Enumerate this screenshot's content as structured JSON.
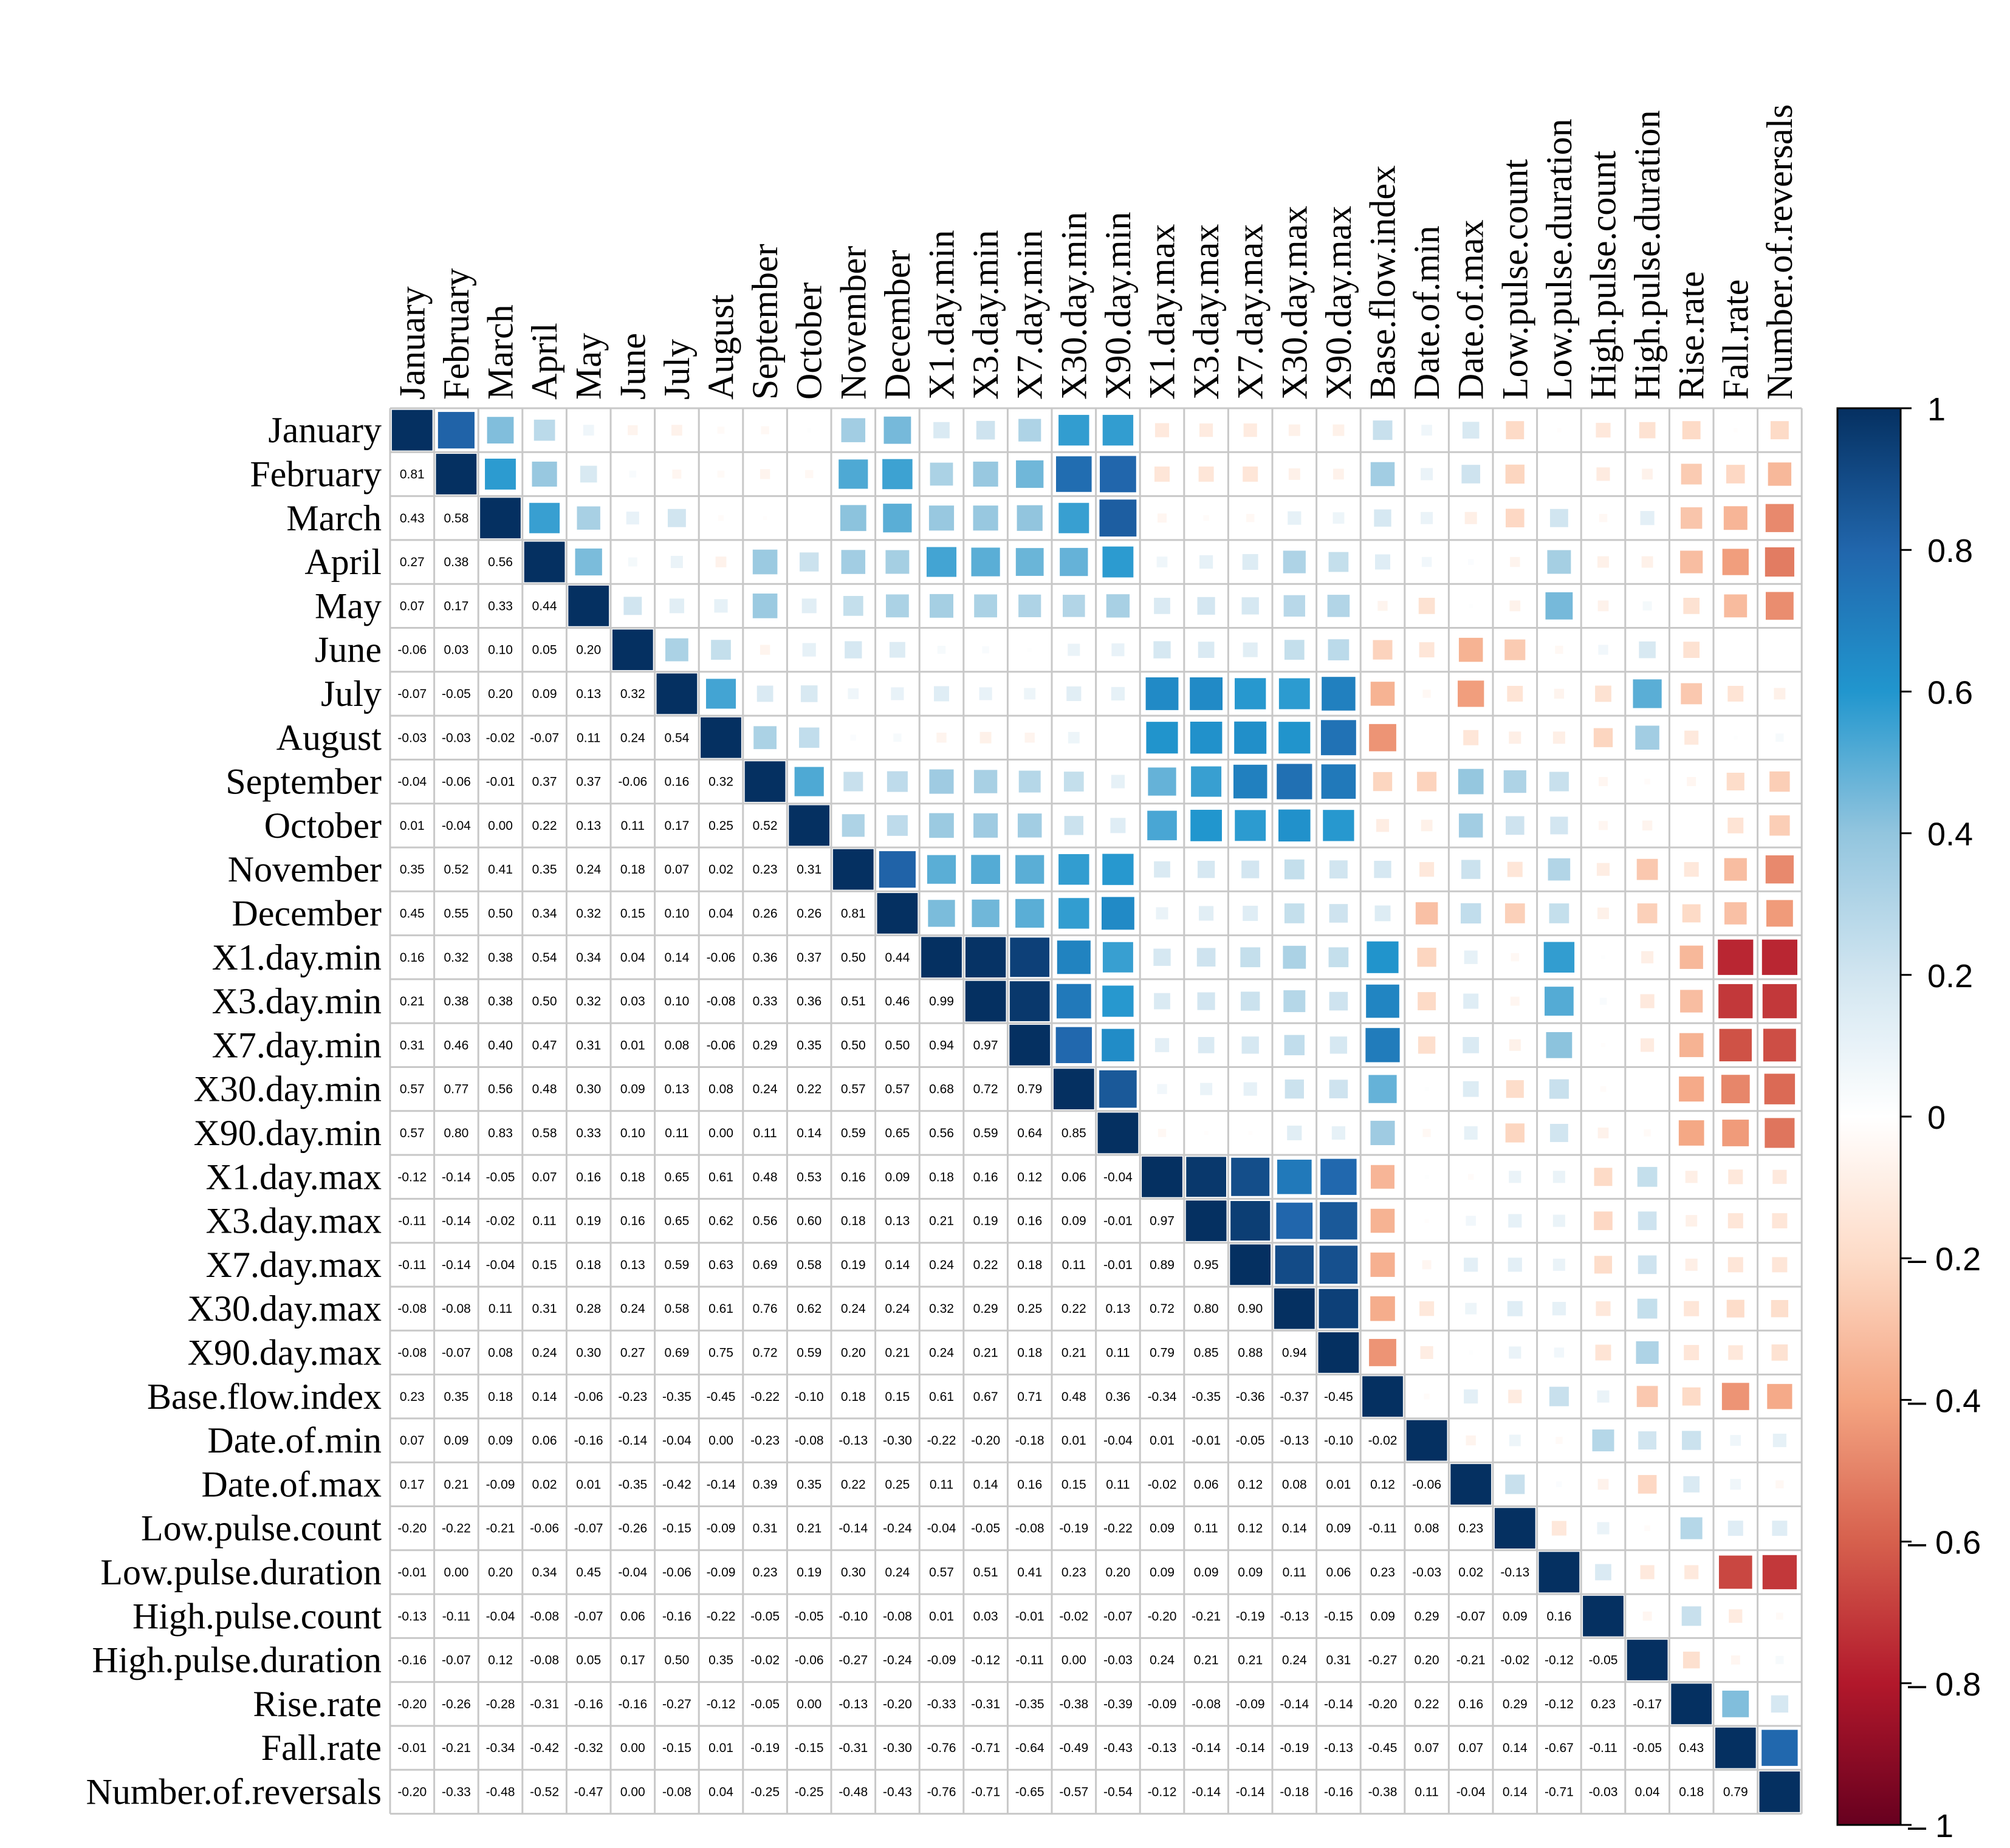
{
  "chart_data": {
    "type": "heatmap",
    "subtype": "correlation-matrix",
    "upper_triangle": "colored-squares (size and color ~ correlation)",
    "lower_triangle": "numeric coefficients",
    "variables": [
      "January",
      "February",
      "March",
      "April",
      "May",
      "June",
      "July",
      "August",
      "September",
      "October",
      "November",
      "December",
      "X1.day.min",
      "X3.day.min",
      "X7.day.min",
      "X30.day.min",
      "X90.day.min",
      "X1.day.max",
      "X3.day.max",
      "X7.day.max",
      "X30.day.max",
      "X90.day.max",
      "Base.flow.index",
      "Date.of.min",
      "Date.of.max",
      "Low.pulse.count",
      "Low.pulse.duration",
      "High.pulse.count",
      "High.pulse.duration",
      "Rise.rate",
      "Fall.rate",
      "Number.of.reversals"
    ],
    "lower_labels": [
      [],
      [
        "0.81"
      ],
      [
        "0.43",
        "0.58"
      ],
      [
        "0.27",
        "0.38",
        "0.56"
      ],
      [
        "0.07",
        "0.17",
        "0.33",
        "0.44"
      ],
      [
        "-0.06",
        "0.03",
        "0.10",
        "0.05",
        "0.20"
      ],
      [
        "-0.07",
        "-0.05",
        "0.20",
        "0.09",
        "0.13",
        "0.32"
      ],
      [
        "-0.03",
        "-0.03",
        "-0.02",
        "-0.07",
        "0.11",
        "0.24",
        "0.54"
      ],
      [
        "-0.04",
        "-0.06",
        "-0.01",
        "0.37",
        "0.37",
        "-0.06",
        "0.16",
        "0.32"
      ],
      [
        "0.01",
        "-0.04",
        "0.00",
        "0.22",
        "0.13",
        "0.11",
        "0.17",
        "0.25",
        "0.52"
      ],
      [
        "0.35",
        "0.52",
        "0.41",
        "0.35",
        "0.24",
        "0.18",
        "0.07",
        "0.02",
        "0.23",
        "0.31"
      ],
      [
        "0.45",
        "0.55",
        "0.50",
        "0.34",
        "0.32",
        "0.15",
        "0.10",
        "0.04",
        "0.26",
        "0.26",
        "0.81"
      ],
      [
        "0.16",
        "0.32",
        "0.38",
        "0.54",
        "0.34",
        "0.04",
        "0.14",
        "-0.06",
        "0.36",
        "0.37",
        "0.50",
        "0.44"
      ],
      [
        "0.21",
        "0.38",
        "0.38",
        "0.50",
        "0.32",
        "0.03",
        "0.10",
        "-0.08",
        "0.33",
        "0.36",
        "0.51",
        "0.46",
        "0.99"
      ],
      [
        "0.31",
        "0.46",
        "0.40",
        "0.47",
        "0.31",
        "0.01",
        "0.08",
        "-0.06",
        "0.29",
        "0.35",
        "0.50",
        "0.50",
        "0.94",
        "0.97"
      ],
      [
        "0.57",
        "0.77",
        "0.56",
        "0.48",
        "0.30",
        "0.09",
        "0.13",
        "0.08",
        "0.24",
        "0.22",
        "0.57",
        "0.57",
        "0.68",
        "0.72",
        "0.79"
      ],
      [
        "0.57",
        "0.80",
        "0.83",
        "0.58",
        "0.33",
        "0.10",
        "0.11",
        "0.00",
        "0.11",
        "0.14",
        "0.59",
        "0.65",
        "0.56",
        "0.59",
        "0.64",
        "0.85"
      ],
      [
        "-0.12",
        "-0.14",
        "-0.05",
        "0.07",
        "0.16",
        "0.18",
        "0.65",
        "0.61",
        "0.48",
        "0.53",
        "0.16",
        "0.09",
        "0.18",
        "0.16",
        "0.12",
        "0.06",
        "-0.04"
      ],
      [
        "-0.11",
        "-0.14",
        "-0.02",
        "0.11",
        "0.19",
        "0.16",
        "0.65",
        "0.62",
        "0.56",
        "0.60",
        "0.18",
        "0.13",
        "0.21",
        "0.19",
        "0.16",
        "0.09",
        "-0.01",
        "0.97"
      ],
      [
        "-0.11",
        "-0.14",
        "-0.04",
        "0.15",
        "0.18",
        "0.13",
        "0.59",
        "0.63",
        "0.69",
        "0.58",
        "0.19",
        "0.14",
        "0.24",
        "0.22",
        "0.18",
        "0.11",
        "-0.01",
        "0.89",
        "0.95"
      ],
      [
        "-0.08",
        "-0.08",
        "0.11",
        "0.31",
        "0.28",
        "0.24",
        "0.58",
        "0.61",
        "0.76",
        "0.62",
        "0.24",
        "0.24",
        "0.32",
        "0.29",
        "0.25",
        "0.22",
        "0.13",
        "0.72",
        "0.80",
        "0.90"
      ],
      [
        "-0.08",
        "-0.07",
        "0.08",
        "0.24",
        "0.30",
        "0.27",
        "0.69",
        "0.75",
        "0.72",
        "0.59",
        "0.20",
        "0.21",
        "0.24",
        "0.21",
        "0.18",
        "0.21",
        "0.11",
        "0.79",
        "0.85",
        "0.88",
        "0.94"
      ],
      [
        "0.23",
        "0.35",
        "0.18",
        "0.14",
        "-0.06",
        "-0.23",
        "-0.35",
        "-0.45",
        "-0.22",
        "-0.10",
        "0.18",
        "0.15",
        "0.61",
        "0.67",
        "0.71",
        "0.48",
        "0.36",
        "-0.34",
        "-0.35",
        "-0.36",
        "-0.37",
        "-0.45"
      ],
      [
        "0.07",
        "0.09",
        "0.09",
        "0.06",
        "-0.16",
        "-0.14",
        "-0.04",
        "0.00",
        "-0.23",
        "-0.08",
        "-0.13",
        "-0.30",
        "-0.22",
        "-0.20",
        "-0.18",
        "0.01",
        "-0.04",
        "0.01",
        "-0.01",
        "-0.05",
        "-0.13",
        "-0.10",
        "-0.02"
      ],
      [
        "0.17",
        "0.21",
        "-0.09",
        "0.02",
        "0.01",
        "-0.35",
        "-0.42",
        "-0.14",
        "0.39",
        "0.35",
        "0.22",
        "0.25",
        "0.11",
        "0.14",
        "0.16",
        "0.15",
        "0.11",
        "-0.02",
        "0.06",
        "0.12",
        "0.08",
        "0.01",
        "0.12",
        "-0.06"
      ],
      [
        "-0.20",
        "-0.22",
        "-0.21",
        "-0.06",
        "-0.07",
        "-0.26",
        "-0.15",
        "-0.09",
        "0.31",
        "0.21",
        "-0.14",
        "-0.24",
        "-0.04",
        "-0.05",
        "-0.08",
        "-0.19",
        "-0.22",
        "0.09",
        "0.11",
        "0.12",
        "0.14",
        "0.09",
        "-0.11",
        "0.08",
        "0.23"
      ],
      [
        "-0.01",
        "0.00",
        "0.20",
        "0.34",
        "0.45",
        "-0.04",
        "-0.06",
        "-0.09",
        "0.23",
        "0.19",
        "0.30",
        "0.24",
        "0.57",
        "0.51",
        "0.41",
        "0.23",
        "0.20",
        "0.09",
        "0.09",
        "0.09",
        "0.11",
        "0.06",
        "0.23",
        "-0.03",
        "0.02",
        "-0.13"
      ],
      [
        "-0.13",
        "-0.11",
        "-0.04",
        "-0.08",
        "-0.07",
        "0.06",
        "-0.16",
        "-0.22",
        "-0.05",
        "-0.05",
        "-0.10",
        "-0.08",
        "0.01",
        "0.03",
        "-0.01",
        "-0.02",
        "-0.07",
        "-0.20",
        "-0.21",
        "-0.19",
        "-0.13",
        "-0.15",
        "0.09",
        "0.29",
        "-0.07",
        "0.09",
        "0.16"
      ],
      [
        "-0.16",
        "-0.07",
        "0.12",
        "-0.08",
        "0.05",
        "0.17",
        "0.50",
        "0.35",
        "-0.02",
        "-0.06",
        "-0.27",
        "-0.24",
        "-0.09",
        "-0.12",
        "-0.11",
        "0.00",
        "-0.03",
        "0.24",
        "0.21",
        "0.21",
        "0.24",
        "0.31",
        "-0.27",
        "0.20",
        "-0.21",
        "-0.02",
        "-0.12",
        "-0.05"
      ],
      [
        "-0.20",
        "-0.26",
        "-0.28",
        "-0.31",
        "-0.16",
        "-0.16",
        "-0.27",
        "-0.12",
        "-0.05",
        "0.00",
        "-0.13",
        "-0.20",
        "-0.33",
        "-0.31",
        "-0.35",
        "-0.38",
        "-0.39",
        "-0.09",
        "-0.08",
        "-0.09",
        "-0.14",
        "-0.14",
        "-0.20",
        "0.22",
        "0.16",
        "0.29",
        "-0.12",
        "0.23",
        "-0.17"
      ],
      [
        "-0.01",
        "-0.21",
        "-0.34",
        "-0.42",
        "-0.32",
        "0.00",
        "-0.15",
        "0.01",
        "-0.19",
        "-0.15",
        "-0.31",
        "-0.30",
        "-0.76",
        "-0.71",
        "-0.64",
        "-0.49",
        "-0.43",
        "-0.13",
        "-0.14",
        "-0.14",
        "-0.19",
        "-0.13",
        "-0.45",
        "0.07",
        "0.07",
        "0.14",
        "-0.67",
        "-0.11",
        "-0.05",
        "0.43"
      ],
      [
        "-0.20",
        "-0.33",
        "-0.48",
        "-0.52",
        "-0.47",
        "0.00",
        "-0.08",
        "0.04",
        "-0.25",
        "-0.25",
        "-0.48",
        "-0.43",
        "-0.76",
        "-0.71",
        "-0.65",
        "-0.57",
        "-0.54",
        "-0.12",
        "-0.14",
        "-0.14",
        "-0.18",
        "-0.16",
        "-0.38",
        "0.11",
        "-0.04",
        "0.14",
        "-0.71",
        "-0.03",
        "0.04",
        "0.18",
        "0.79"
      ]
    ],
    "colorbar": {
      "ticks": [
        "1",
        "0.8",
        "0.6",
        "0.4",
        "0.2",
        "0",
        "– 0.2",
        "– 0.4",
        "– 0.6",
        "– 0.8",
        "– 1"
      ],
      "range": [
        -1,
        1
      ],
      "low_color": "#67001F",
      "mid_color": "#FFFFFF",
      "high_color": "#053061"
    }
  }
}
